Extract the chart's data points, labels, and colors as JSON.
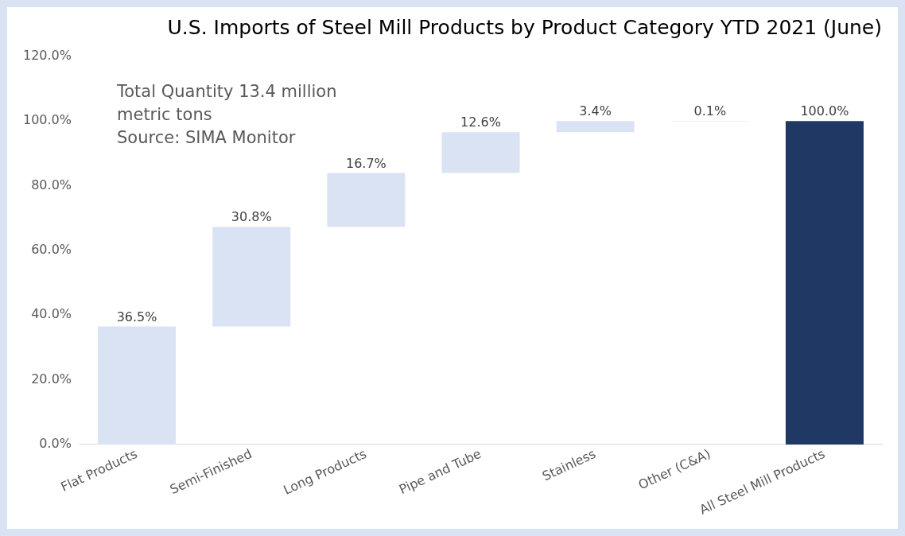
{
  "chart_data": {
    "type": "bar",
    "title": "U.S. Imports of Steel Mill Products by Product Category YTD 2021 (June)",
    "categories": [
      "Flat Products",
      "Semi-Finished",
      "Long Products",
      "Pipe and Tube",
      "Stainless",
      "Other (C&A)",
      "All Steel Mill Products"
    ],
    "values": [
      36.5,
      30.8,
      16.7,
      12.6,
      3.4,
      0.1,
      100.0
    ],
    "base": [
      0,
      36.5,
      67.3,
      84.0,
      96.6,
      99.9,
      0
    ],
    "colors": [
      "#dae3f3",
      "#dae3f3",
      "#dae3f3",
      "#dae3f3",
      "#dae3f3",
      "#dae3f3",
      "#203864"
    ],
    "value_labels": [
      "36.5%",
      "30.8%",
      "16.7%",
      "12.6%",
      "3.4%",
      "0.1%",
      "100.0%"
    ],
    "ylim": [
      0,
      120
    ],
    "yticks": [
      {
        "value": 0,
        "label": "0.0%"
      },
      {
        "value": 20,
        "label": "20.0%"
      },
      {
        "value": 40,
        "label": "40.0%"
      },
      {
        "value": 60,
        "label": "60.0%"
      },
      {
        "value": 80,
        "label": "80.0%"
      },
      {
        "value": 100,
        "label": "100.0%"
      },
      {
        "value": 120,
        "label": "120.0%"
      }
    ],
    "grid": false,
    "legend": false,
    "annotations": [
      "Total Quantity 13.4 million metric tons",
      "Source: SIMA Monitor"
    ]
  }
}
